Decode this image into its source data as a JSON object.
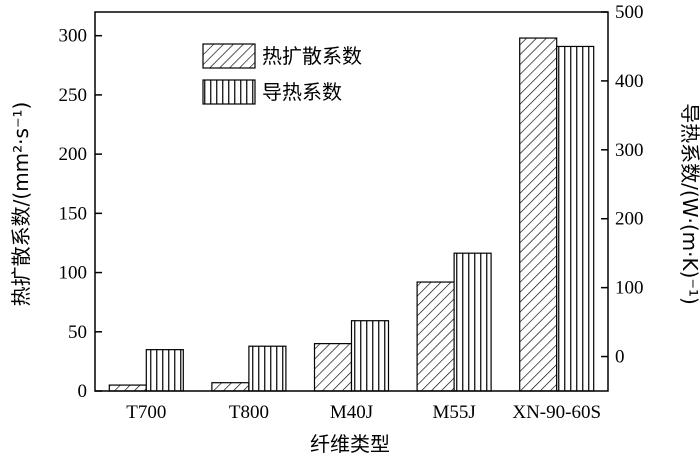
{
  "chart_data": {
    "type": "bar",
    "categories": [
      "T700",
      "T800",
      "M40J",
      "M55J",
      "XN-90-60S"
    ],
    "series": [
      {
        "name": "热扩散系数",
        "axis": "left",
        "pattern": "diagonal-hatch",
        "values": [
          5,
          7,
          40,
          92,
          298
        ]
      },
      {
        "name": "导热系数",
        "axis": "right",
        "pattern": "vertical-hatch",
        "values": [
          10,
          15,
          52,
          150,
          450
        ]
      }
    ],
    "xlabel": "纤维类型",
    "ylabel_left": "热扩散系数/(mm²·s⁻¹)",
    "ylabel_right": "导热系数/(W·(m·K)⁻¹)",
    "y_left": {
      "lim": [
        0,
        320
      ],
      "ticks": [
        0,
        50,
        100,
        150,
        200,
        250,
        300
      ]
    },
    "y_right": {
      "lim": [
        -50,
        500
      ],
      "ticks": [
        0,
        100,
        200,
        300,
        400,
        500
      ]
    },
    "legend_position": "top-left",
    "grid": false
  }
}
